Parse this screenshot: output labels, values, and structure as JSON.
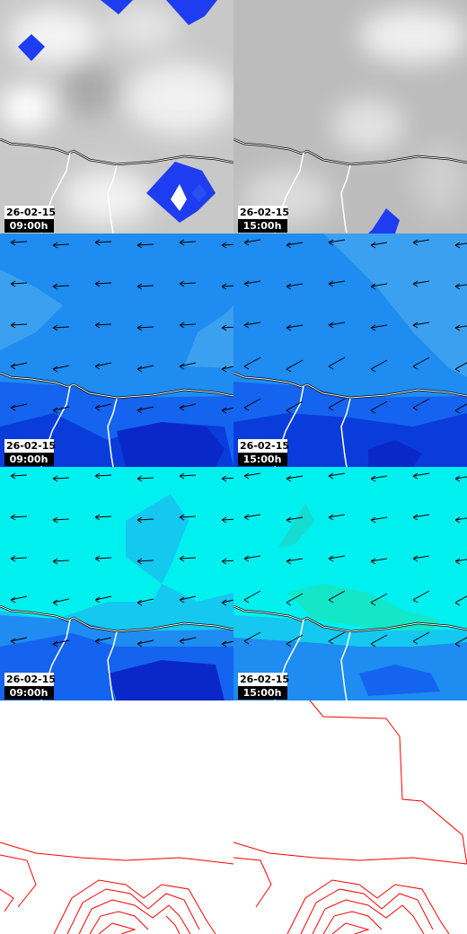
{
  "panels": [
    {
      "date": "26-02-15",
      "time": "09:00h"
    },
    {
      "date": "26-02-15",
      "time": "15:00h"
    },
    {
      "date": "26-02-15",
      "time": "09:00h"
    },
    {
      "date": "26-02-15",
      "time": "15:00h"
    },
    {
      "date": "26-02-15",
      "time": "09:00h"
    },
    {
      "date": "26-02-15",
      "time": "15:00h"
    }
  ]
}
